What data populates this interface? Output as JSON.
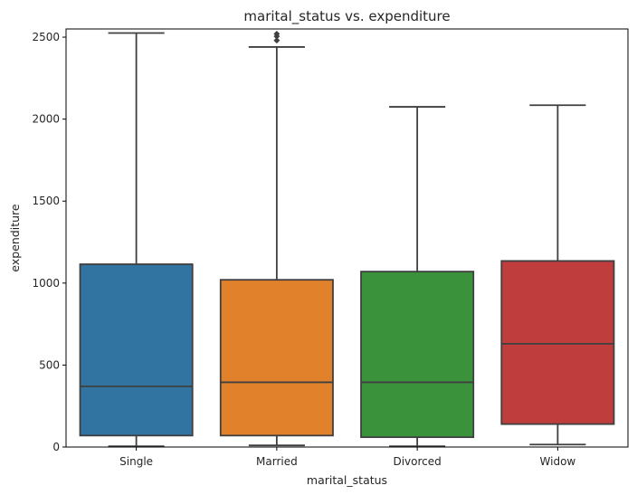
{
  "chart_data": {
    "type": "box",
    "title": "marital_status vs. expenditure",
    "xlabel": "marital_status",
    "ylabel": "expenditure",
    "categories": [
      "Single",
      "Married",
      "Divorced",
      "Widow"
    ],
    "ylim": [
      0,
      2550
    ],
    "yticks": [
      0,
      500,
      1000,
      1500,
      2000,
      2500
    ],
    "ytick_labels": [
      "0",
      "500",
      "1000",
      "1500",
      "2000",
      "2500"
    ],
    "grid": false,
    "colors": [
      "#3274a1",
      "#e1812c",
      "#3a923a",
      "#c03d3e"
    ],
    "line_color": "#3f3f3f",
    "boxes": [
      {
        "category": "Single",
        "whisker_low": 5,
        "q1": 70,
        "median": 370,
        "q3": 1115,
        "whisker_high": 2525,
        "outliers": []
      },
      {
        "category": "Married",
        "whisker_low": 10,
        "q1": 70,
        "median": 395,
        "q3": 1020,
        "whisker_high": 2440,
        "outliers": [
          2480,
          2505,
          2520
        ]
      },
      {
        "category": "Divorced",
        "whisker_low": 5,
        "q1": 60,
        "median": 395,
        "q3": 1070,
        "whisker_high": 2075,
        "outliers": []
      },
      {
        "category": "Widow",
        "whisker_low": 15,
        "q1": 140,
        "median": 630,
        "q3": 1135,
        "whisker_high": 2085,
        "outliers": []
      }
    ]
  }
}
